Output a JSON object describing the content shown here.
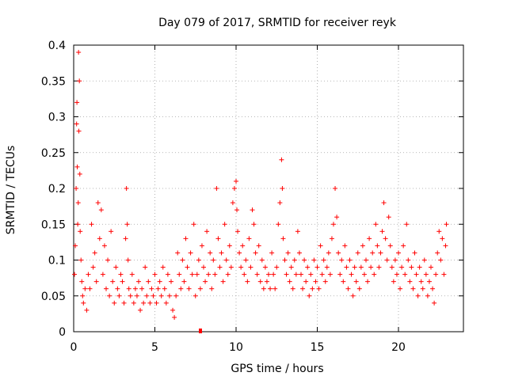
{
  "chart_data": {
    "type": "scatter",
    "title": "Day 079 of 2017, SRMTID for receiver reyk",
    "xlabel": "GPS time / hours",
    "ylabel": "SRMTID / TECUs",
    "xlim": [
      0,
      24
    ],
    "ylim": [
      0,
      0.4
    ],
    "grid": true,
    "x_ticks": [
      0,
      5,
      10,
      15,
      20
    ],
    "x_tick_labels": [
      "0",
      "5",
      "10",
      "15",
      "20"
    ],
    "y_ticks": [
      0,
      0.05,
      0.1,
      0.15,
      0.2,
      0.25,
      0.3,
      0.35,
      0.4
    ],
    "y_tick_labels": [
      "0",
      "0.05",
      "0.1",
      "0.15",
      "0.2",
      "0.25",
      "0.3",
      "0.35",
      "0.4"
    ],
    "marker": "+",
    "marker_color": "#ff0000",
    "series": [
      {
        "name": "SRMTID",
        "points": [
          [
            0.05,
            0.08
          ],
          [
            0.1,
            0.12
          ],
          [
            0.15,
            0.2
          ],
          [
            0.18,
            0.29
          ],
          [
            0.2,
            0.32
          ],
          [
            0.22,
            0.23
          ],
          [
            0.25,
            0.15
          ],
          [
            0.28,
            0.18
          ],
          [
            0.3,
            0.39
          ],
          [
            0.32,
            0.28
          ],
          [
            0.35,
            0.35
          ],
          [
            0.38,
            0.22
          ],
          [
            0.4,
            0.14
          ],
          [
            0.45,
            0.1
          ],
          [
            0.5,
            0.07
          ],
          [
            0.55,
            0.05
          ],
          [
            0.6,
            0.04
          ],
          [
            0.7,
            0.06
          ],
          [
            0.8,
            0.03
          ],
          [
            0.9,
            0.08
          ],
          [
            1.0,
            0.06
          ],
          [
            1.1,
            0.15
          ],
          [
            1.2,
            0.09
          ],
          [
            1.3,
            0.11
          ],
          [
            1.4,
            0.07
          ],
          [
            1.5,
            0.18
          ],
          [
            1.6,
            0.13
          ],
          [
            1.7,
            0.17
          ],
          [
            1.8,
            0.08
          ],
          [
            1.9,
            0.12
          ],
          [
            2.0,
            0.06
          ],
          [
            2.1,
            0.1
          ],
          [
            2.2,
            0.05
          ],
          [
            2.3,
            0.14
          ],
          [
            2.4,
            0.07
          ],
          [
            2.5,
            0.04
          ],
          [
            2.6,
            0.09
          ],
          [
            2.7,
            0.06
          ],
          [
            2.8,
            0.05
          ],
          [
            2.9,
            0.08
          ],
          [
            3.0,
            0.07
          ],
          [
            3.1,
            0.04
          ],
          [
            3.2,
            0.13
          ],
          [
            3.25,
            0.2
          ],
          [
            3.3,
            0.15
          ],
          [
            3.35,
            0.1
          ],
          [
            3.4,
            0.06
          ],
          [
            3.5,
            0.05
          ],
          [
            3.6,
            0.08
          ],
          [
            3.7,
            0.04
          ],
          [
            3.8,
            0.06
          ],
          [
            3.9,
            0.05
          ],
          [
            4.0,
            0.07
          ],
          [
            4.1,
            0.03
          ],
          [
            4.2,
            0.06
          ],
          [
            4.3,
            0.04
          ],
          [
            4.4,
            0.09
          ],
          [
            4.5,
            0.05
          ],
          [
            4.6,
            0.07
          ],
          [
            4.7,
            0.04
          ],
          [
            4.8,
            0.06
          ],
          [
            4.9,
            0.05
          ],
          [
            5.0,
            0.08
          ],
          [
            5.1,
            0.04
          ],
          [
            5.2,
            0.06
          ],
          [
            5.3,
            0.07
          ],
          [
            5.4,
            0.05
          ],
          [
            5.5,
            0.09
          ],
          [
            5.6,
            0.06
          ],
          [
            5.7,
            0.04
          ],
          [
            5.8,
            0.08
          ],
          [
            5.9,
            0.05
          ],
          [
            6.0,
            0.07
          ],
          [
            6.1,
            0.03
          ],
          [
            6.2,
            0.02
          ],
          [
            6.3,
            0.05
          ],
          [
            6.4,
            0.11
          ],
          [
            6.5,
            0.08
          ],
          [
            6.6,
            0.06
          ],
          [
            6.7,
            0.1
          ],
          [
            6.8,
            0.07
          ],
          [
            6.9,
            0.13
          ],
          [
            7.0,
            0.09
          ],
          [
            7.1,
            0.06
          ],
          [
            7.2,
            0.11
          ],
          [
            7.3,
            0.08
          ],
          [
            7.4,
            0.15
          ],
          [
            7.5,
            0.05
          ],
          [
            7.6,
            0.08
          ],
          [
            7.7,
            0.1
          ],
          [
            7.8,
            0.06
          ],
          [
            7.9,
            0.12
          ],
          [
            8.0,
            0.09
          ],
          [
            8.1,
            0.07
          ],
          [
            8.2,
            0.14
          ],
          [
            8.3,
            0.08
          ],
          [
            8.4,
            0.11
          ],
          [
            8.5,
            0.06
          ],
          [
            8.6,
            0.1
          ],
          [
            8.7,
            0.08
          ],
          [
            8.8,
            0.2
          ],
          [
            8.9,
            0.13
          ],
          [
            9.0,
            0.09
          ],
          [
            9.1,
            0.11
          ],
          [
            9.2,
            0.07
          ],
          [
            9.3,
            0.15
          ],
          [
            9.4,
            0.1
          ],
          [
            9.5,
            0.08
          ],
          [
            9.6,
            0.12
          ],
          [
            9.7,
            0.09
          ],
          [
            9.8,
            0.18
          ],
          [
            9.9,
            0.2
          ],
          [
            10.0,
            0.21
          ],
          [
            10.05,
            0.17
          ],
          [
            10.1,
            0.14
          ],
          [
            10.2,
            0.11
          ],
          [
            10.3,
            0.09
          ],
          [
            10.4,
            0.12
          ],
          [
            10.5,
            0.08
          ],
          [
            10.6,
            0.1
          ],
          [
            10.7,
            0.07
          ],
          [
            10.8,
            0.13
          ],
          [
            10.9,
            0.09
          ],
          [
            11.0,
            0.17
          ],
          [
            11.1,
            0.15
          ],
          [
            11.2,
            0.11
          ],
          [
            11.3,
            0.08
          ],
          [
            11.4,
            0.12
          ],
          [
            11.5,
            0.07
          ],
          [
            11.6,
            0.1
          ],
          [
            11.7,
            0.06
          ],
          [
            11.8,
            0.09
          ],
          [
            11.9,
            0.07
          ],
          [
            12.0,
            0.08
          ],
          [
            12.1,
            0.06
          ],
          [
            12.2,
            0.11
          ],
          [
            12.3,
            0.08
          ],
          [
            12.4,
            0.06
          ],
          [
            12.5,
            0.09
          ],
          [
            12.6,
            0.15
          ],
          [
            12.7,
            0.18
          ],
          [
            12.8,
            0.24
          ],
          [
            12.85,
            0.2
          ],
          [
            12.9,
            0.13
          ],
          [
            13.0,
            0.1
          ],
          [
            13.1,
            0.08
          ],
          [
            13.2,
            0.11
          ],
          [
            13.3,
            0.07
          ],
          [
            13.4,
            0.09
          ],
          [
            13.5,
            0.06
          ],
          [
            13.6,
            0.1
          ],
          [
            13.7,
            0.08
          ],
          [
            13.8,
            0.14
          ],
          [
            13.9,
            0.11
          ],
          [
            14.0,
            0.08
          ],
          [
            14.1,
            0.06
          ],
          [
            14.2,
            0.1
          ],
          [
            14.3,
            0.07
          ],
          [
            14.4,
            0.09
          ],
          [
            14.5,
            0.05
          ],
          [
            14.6,
            0.08
          ],
          [
            14.7,
            0.06
          ],
          [
            14.8,
            0.1
          ],
          [
            14.9,
            0.07
          ],
          [
            15.0,
            0.09
          ],
          [
            15.1,
            0.06
          ],
          [
            15.2,
            0.12
          ],
          [
            15.3,
            0.08
          ],
          [
            15.4,
            0.1
          ],
          [
            15.5,
            0.07
          ],
          [
            15.6,
            0.09
          ],
          [
            15.7,
            0.11
          ],
          [
            15.8,
            0.08
          ],
          [
            15.9,
            0.13
          ],
          [
            16.0,
            0.15
          ],
          [
            16.1,
            0.2
          ],
          [
            16.2,
            0.16
          ],
          [
            16.3,
            0.11
          ],
          [
            16.4,
            0.08
          ],
          [
            16.5,
            0.1
          ],
          [
            16.6,
            0.07
          ],
          [
            16.7,
            0.12
          ],
          [
            16.8,
            0.09
          ],
          [
            16.9,
            0.06
          ],
          [
            17.0,
            0.1
          ],
          [
            17.1,
            0.08
          ],
          [
            17.2,
            0.05
          ],
          [
            17.3,
            0.09
          ],
          [
            17.4,
            0.07
          ],
          [
            17.5,
            0.11
          ],
          [
            17.6,
            0.06
          ],
          [
            17.7,
            0.09
          ],
          [
            17.8,
            0.12
          ],
          [
            17.9,
            0.08
          ],
          [
            18.0,
            0.1
          ],
          [
            18.1,
            0.07
          ],
          [
            18.2,
            0.13
          ],
          [
            18.3,
            0.09
          ],
          [
            18.4,
            0.11
          ],
          [
            18.5,
            0.08
          ],
          [
            18.6,
            0.15
          ],
          [
            18.7,
            0.12
          ],
          [
            18.8,
            0.09
          ],
          [
            18.9,
            0.11
          ],
          [
            19.0,
            0.14
          ],
          [
            19.1,
            0.18
          ],
          [
            19.2,
            0.13
          ],
          [
            19.3,
            0.1
          ],
          [
            19.4,
            0.16
          ],
          [
            19.5,
            0.12
          ],
          [
            19.6,
            0.09
          ],
          [
            19.7,
            0.07
          ],
          [
            19.8,
            0.1
          ],
          [
            19.9,
            0.08
          ],
          [
            20.0,
            0.11
          ],
          [
            20.1,
            0.06
          ],
          [
            20.2,
            0.09
          ],
          [
            20.3,
            0.12
          ],
          [
            20.4,
            0.08
          ],
          [
            20.5,
            0.15
          ],
          [
            20.6,
            0.1
          ],
          [
            20.7,
            0.07
          ],
          [
            20.8,
            0.09
          ],
          [
            20.9,
            0.06
          ],
          [
            21.0,
            0.11
          ],
          [
            21.1,
            0.08
          ],
          [
            21.2,
            0.05
          ],
          [
            21.3,
            0.09
          ],
          [
            21.4,
            0.07
          ],
          [
            21.5,
            0.06
          ],
          [
            21.6,
            0.1
          ],
          [
            21.7,
            0.08
          ],
          [
            21.8,
            0.05
          ],
          [
            21.9,
            0.07
          ],
          [
            22.0,
            0.09
          ],
          [
            22.1,
            0.06
          ],
          [
            22.2,
            0.04
          ],
          [
            22.3,
            0.08
          ],
          [
            22.4,
            0.11
          ],
          [
            22.5,
            0.14
          ],
          [
            22.6,
            0.1
          ],
          [
            22.7,
            0.13
          ],
          [
            22.8,
            0.08
          ],
          [
            22.9,
            0.12
          ],
          [
            22.95,
            0.15
          ]
        ]
      }
    ]
  }
}
